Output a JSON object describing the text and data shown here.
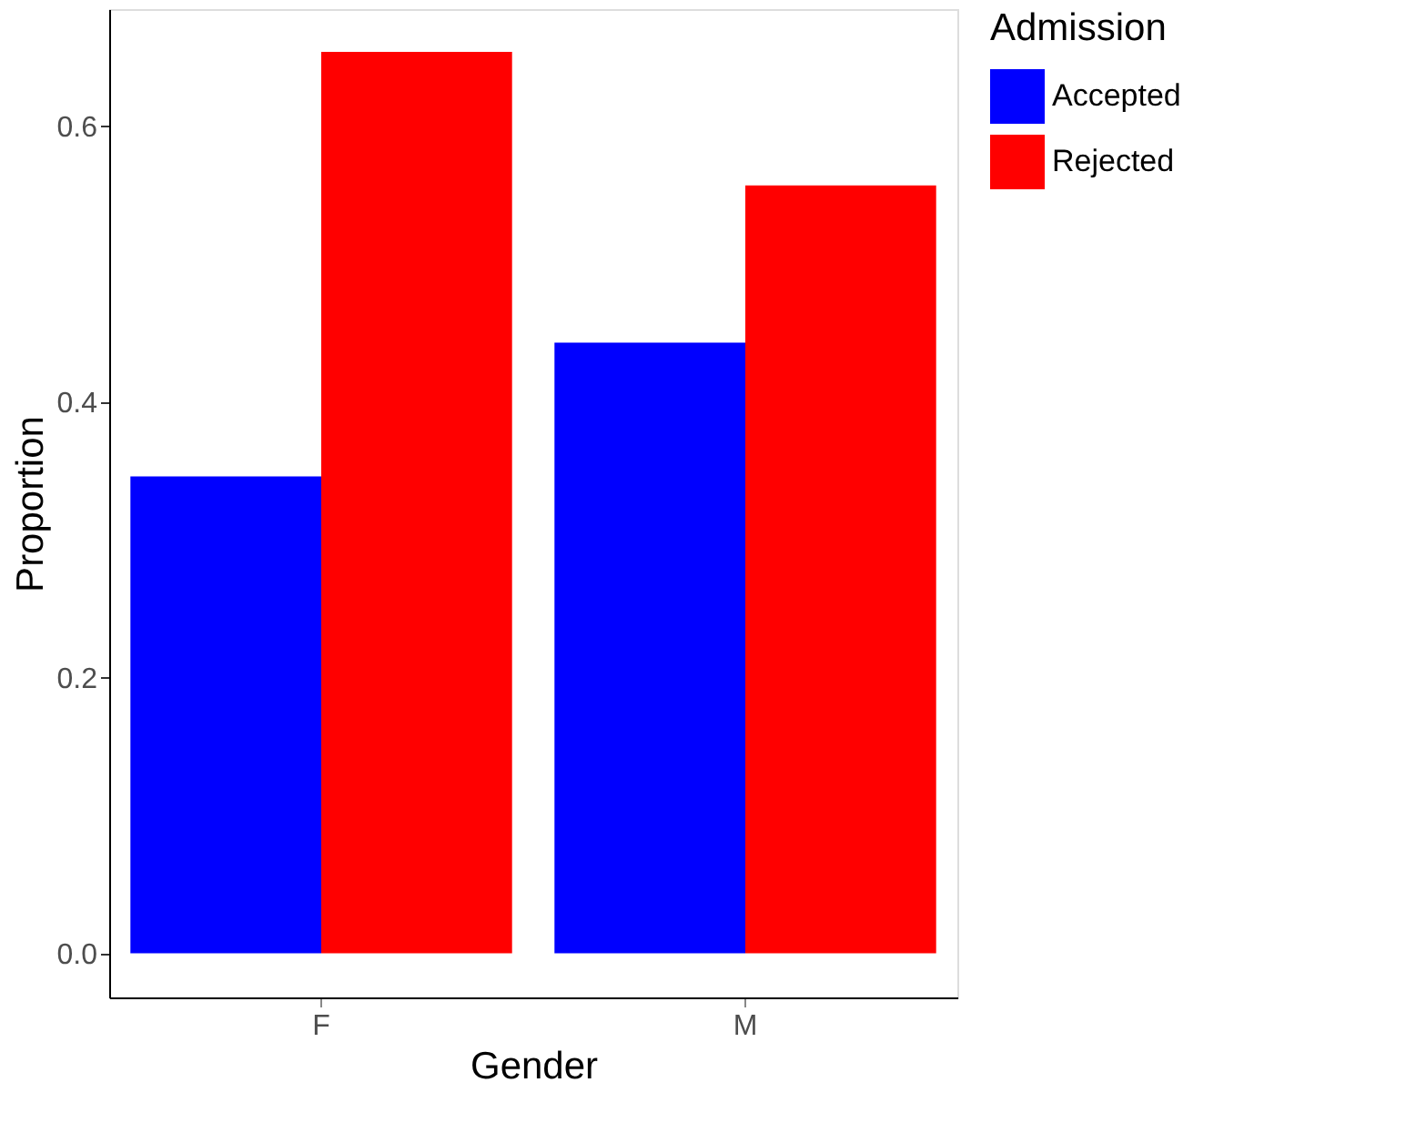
{
  "chart_data": {
    "type": "bar",
    "xlabel": "Gender",
    "ylabel": "Proportion",
    "legend_title": "Admission",
    "categories": [
      "F",
      "M"
    ],
    "series": [
      {
        "name": "Accepted",
        "color": "#0000ff",
        "values": [
          0.346,
          0.443
        ]
      },
      {
        "name": "Rejected",
        "color": "#ff0000",
        "values": [
          0.654,
          0.557
        ]
      }
    ],
    "ylim": [
      -0.032,
      0.685
    ],
    "yticks": [
      {
        "value": 0,
        "label": "0.0"
      },
      {
        "value": 0.2,
        "label": "0.2"
      },
      {
        "value": 0.4,
        "label": "0.4"
      },
      {
        "value": 0.6,
        "label": "0.6"
      }
    ],
    "grid": false,
    "legend": "right"
  }
}
